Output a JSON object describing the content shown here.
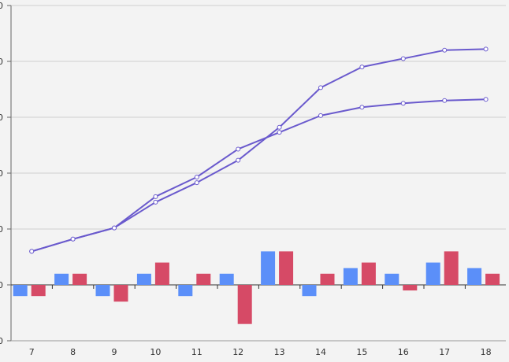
{
  "chart_data": {
    "type": "bar",
    "categories": [
      "7",
      "8",
      "9",
      "10",
      "11",
      "12",
      "13",
      "14",
      "15",
      "16",
      "17",
      "18"
    ],
    "y_tick_labels": [
      "0",
      "0",
      "0",
      "0",
      "0",
      "0",
      "0"
    ],
    "ylim": [
      -1,
      5
    ],
    "grid": true,
    "legend": "none",
    "series": [
      {
        "type": "bar",
        "color": "#5b8ff9",
        "values": [
          -0.2,
          0.2,
          -0.2,
          0.2,
          -0.2,
          0.2,
          0.6,
          -0.2,
          0.3,
          0.2,
          0.4,
          0.3
        ]
      },
      {
        "type": "bar",
        "color": "#d64a66",
        "values": [
          -0.2,
          0.2,
          -0.3,
          0.4,
          0.2,
          -0.7,
          0.6,
          0.2,
          0.4,
          -0.1,
          0.6,
          0.2
        ]
      },
      {
        "type": "line",
        "color": "#6a5acd",
        "values": [
          0.6,
          0.82,
          1.02,
          1.48,
          1.83,
          2.23,
          2.82,
          3.53,
          3.9,
          4.05,
          4.2,
          4.22
        ]
      },
      {
        "type": "line",
        "color": "#6a5acd",
        "values": [
          0.6,
          0.82,
          1.02,
          1.58,
          1.93,
          2.43,
          2.73,
          3.03,
          3.18,
          3.25,
          3.3,
          3.32
        ]
      }
    ]
  }
}
